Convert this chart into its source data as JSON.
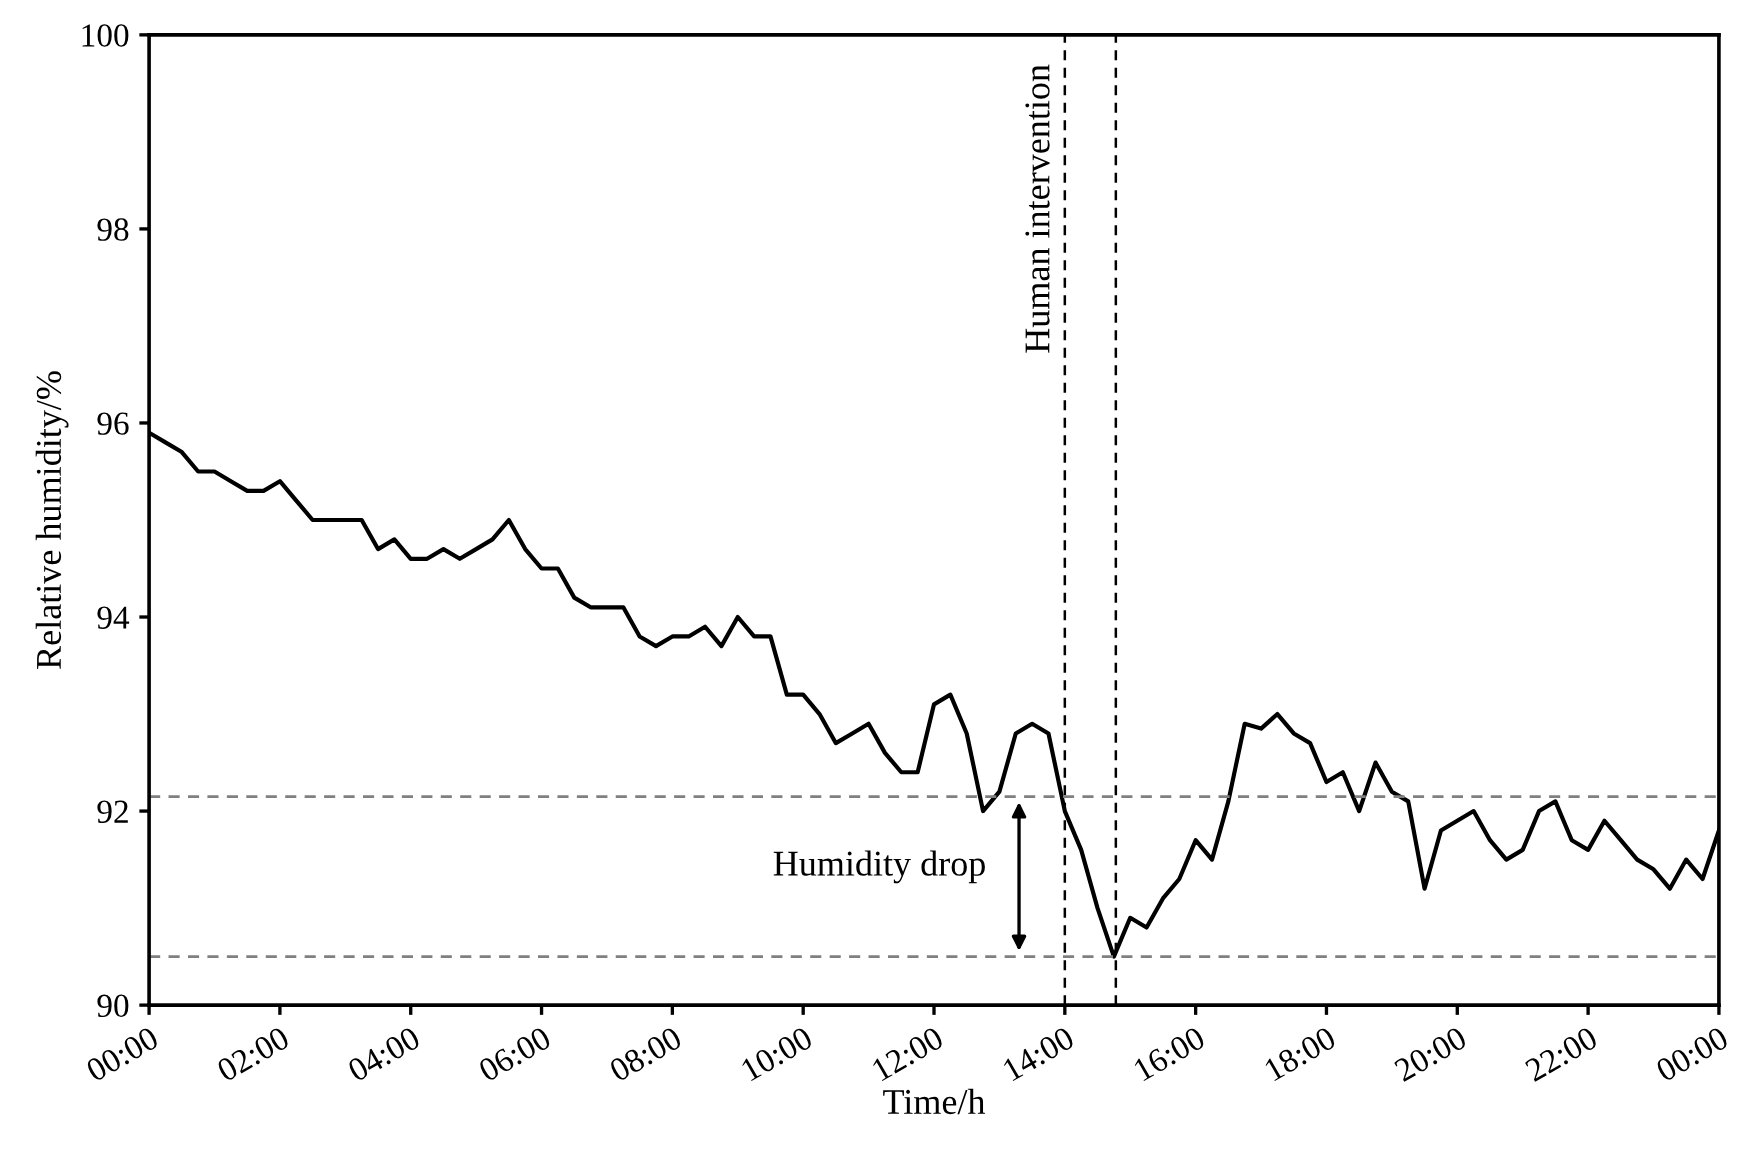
{
  "chart_data": {
    "type": "line",
    "xlabel": "Time/h",
    "ylabel": "Relative humidity/%",
    "x": [
      0,
      0.25,
      0.5,
      0.75,
      1,
      1.25,
      1.5,
      1.75,
      2,
      2.25,
      2.5,
      2.75,
      3,
      3.25,
      3.5,
      3.75,
      4,
      4.25,
      4.5,
      4.75,
      5,
      5.25,
      5.5,
      5.75,
      6,
      6.25,
      6.5,
      6.75,
      7,
      7.25,
      7.5,
      7.75,
      8,
      8.25,
      8.5,
      8.75,
      9,
      9.25,
      9.5,
      9.75,
      10,
      10.25,
      10.5,
      10.75,
      11,
      11.25,
      11.5,
      11.75,
      12,
      12.25,
      12.5,
      12.75,
      13,
      13.25,
      13.5,
      13.75,
      14,
      14.25,
      14.5,
      14.75,
      15,
      15.25,
      15.5,
      15.75,
      16,
      16.25,
      16.5,
      16.75,
      17,
      17.25,
      17.5,
      17.75,
      18,
      18.25,
      18.5,
      18.75,
      19,
      19.25,
      19.5,
      19.75,
      20,
      20.25,
      20.5,
      20.75,
      21,
      21.25,
      21.5,
      21.75,
      22,
      22.25,
      22.5,
      22.75,
      23,
      23.25,
      23.5,
      23.75,
      24
    ],
    "series": [
      {
        "color": "#000000",
        "values": [
          95.9,
          95.8,
          95.7,
          95.5,
          95.5,
          95.4,
          95.3,
          95.3,
          95.4,
          95.2,
          95.0,
          95.0,
          95.0,
          95.0,
          94.7,
          94.8,
          94.6,
          94.6,
          94.7,
          94.6,
          94.7,
          94.8,
          95.0,
          94.7,
          94.5,
          94.5,
          94.2,
          94.1,
          94.1,
          94.1,
          93.8,
          93.7,
          93.8,
          93.8,
          93.9,
          93.7,
          94.0,
          93.8,
          93.8,
          93.2,
          93.2,
          93.0,
          92.7,
          92.8,
          92.9,
          92.6,
          92.4,
          92.4,
          93.1,
          93.2,
          92.8,
          92.0,
          92.2,
          92.8,
          92.9,
          92.8,
          92.0,
          91.6,
          91.0,
          90.5,
          90.9,
          90.8,
          91.1,
          91.3,
          91.7,
          91.5,
          92.1,
          92.9,
          92.85,
          93.0,
          92.8,
          92.7,
          92.3,
          92.4,
          92.0,
          92.5,
          92.2,
          92.1,
          91.2,
          91.8,
          91.9,
          92.0,
          91.7,
          91.5,
          91.6,
          92.0,
          92.1,
          91.7,
          91.6,
          91.9,
          91.7,
          91.5,
          91.4,
          91.2,
          91.5,
          91.3,
          91.8
        ]
      }
    ],
    "xlim": [
      0,
      24
    ],
    "xticks": [
      {
        "value": 0,
        "label": "00:00"
      },
      {
        "value": 2,
        "label": "02:00"
      },
      {
        "value": 4,
        "label": "04:00"
      },
      {
        "value": 6,
        "label": "06:00"
      },
      {
        "value": 8,
        "label": "08:00"
      },
      {
        "value": 10,
        "label": "10:00"
      },
      {
        "value": 12,
        "label": "12:00"
      },
      {
        "value": 14,
        "label": "14:00"
      },
      {
        "value": 16,
        "label": "16:00"
      },
      {
        "value": 18,
        "label": "18:00"
      },
      {
        "value": 20,
        "label": "20:00"
      },
      {
        "value": 22,
        "label": "22:00"
      },
      {
        "value": 24,
        "label": "00:00"
      }
    ],
    "ylim": [
      90,
      100
    ],
    "yticks": [
      90,
      92,
      94,
      96,
      98,
      100
    ],
    "ref_lines": [
      {
        "axis": "x",
        "value": 14.0,
        "label": "Human intervention",
        "color": "#000000",
        "line_style": "dashed"
      },
      {
        "axis": "x",
        "value": 14.78,
        "color": "#000000",
        "line_style": "dashed"
      },
      {
        "axis": "y",
        "value": 92.15,
        "color": "#808080",
        "line_style": "dashed"
      },
      {
        "axis": "y",
        "value": 90.5,
        "color": "#808080",
        "line_style": "dashed"
      }
    ],
    "annotations": [
      "Humidity drop"
    ],
    "grid": false,
    "marker": "none",
    "line_style": "solid"
  }
}
